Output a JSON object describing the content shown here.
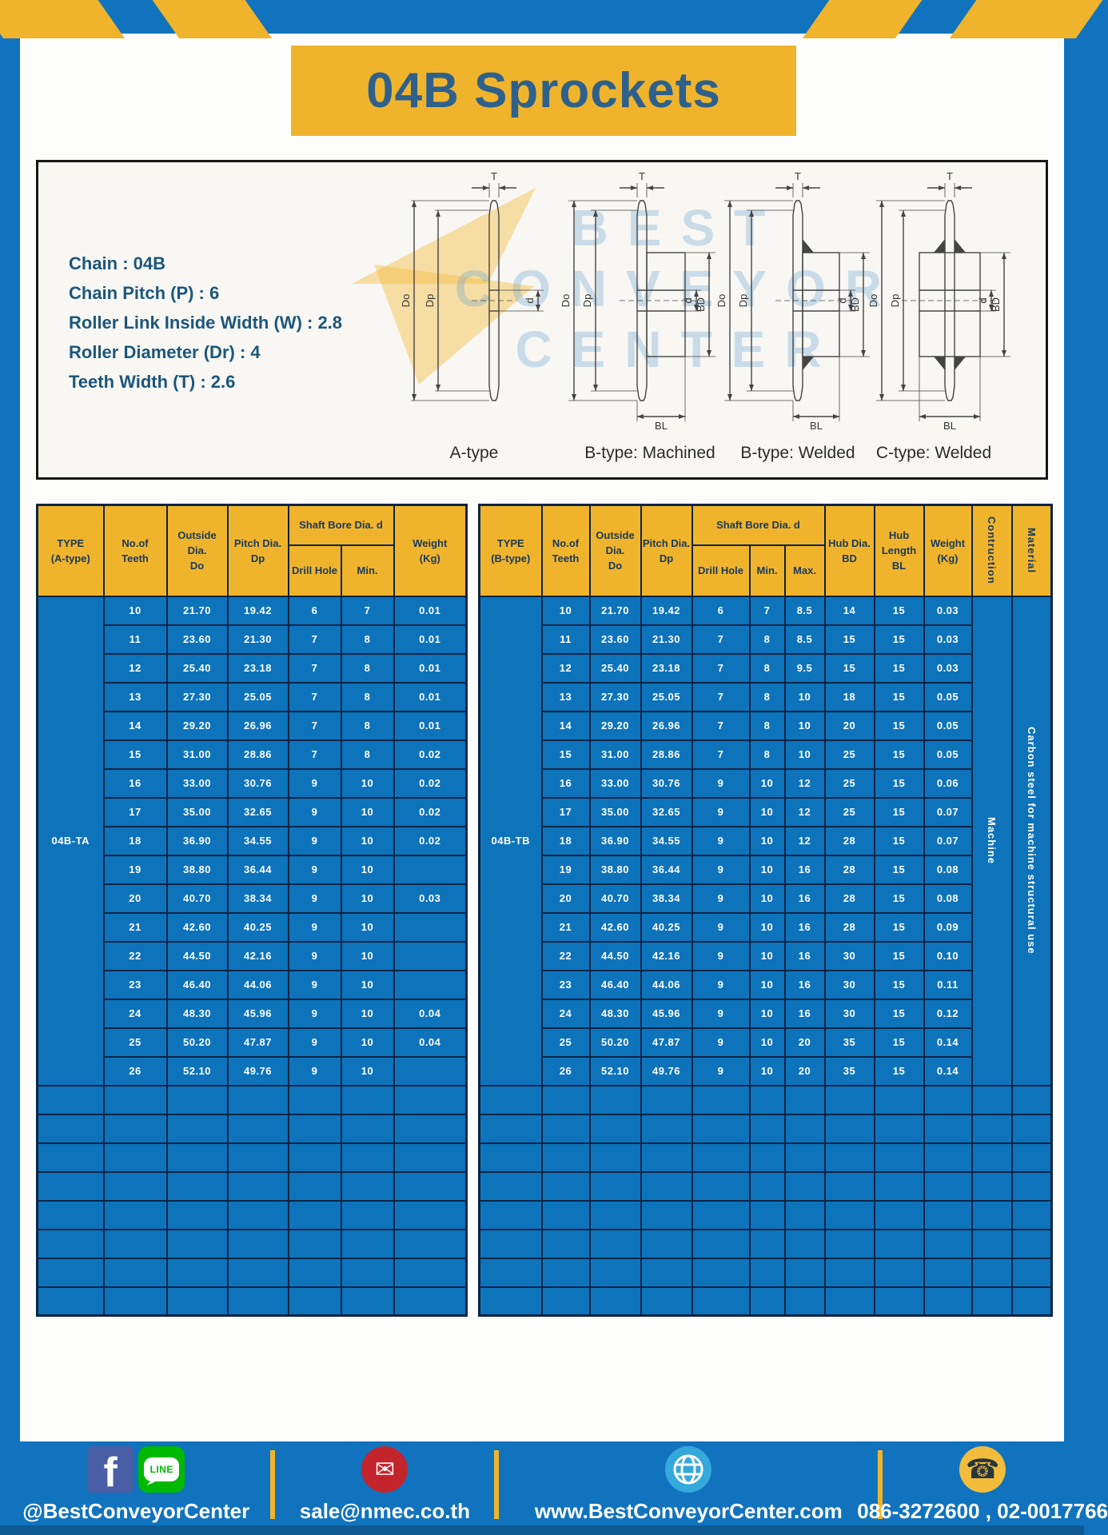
{
  "page_title": "04B Sprockets",
  "colors": {
    "frame_blue": "#1173bd",
    "accent_yellow": "#f0b42c",
    "cell_blue": "#0d73bb",
    "grid_navy": "#0b2444",
    "header_text": "#17395c",
    "title_text": "#2e608c",
    "spec_text": "#1d567c"
  },
  "diagram": {
    "specs": [
      {
        "label": "Chain",
        "value": "04B"
      },
      {
        "label": "Chain Pitch (P)",
        "value": "6"
      },
      {
        "label": "Roller Link Inside Width (W)",
        "value": "2.8"
      },
      {
        "label": "Roller Diameter (Dr)",
        "value": "4"
      },
      {
        "label": "Teeth Width (T)",
        "value": "2.6"
      }
    ],
    "variant_labels": [
      "A-type",
      "B-type: Machined",
      "B-type: Welded",
      "C-type: Welded"
    ],
    "dimension_labels": {
      "teeth_width": "T",
      "outside": "Do",
      "pitch": "Dp",
      "bore": "d",
      "hub_dia": "BD",
      "hub_len": "BL"
    },
    "watermark_lines": [
      "BEST",
      "CONVEYOR",
      "CENTER"
    ]
  },
  "table_a": {
    "header": {
      "type": [
        "TYPE",
        "(A-type)"
      ],
      "teeth": [
        "No.of",
        "Teeth"
      ],
      "outside": [
        "Outside",
        "Dia.",
        "Do"
      ],
      "pitch": [
        "Pitch Dia.",
        "Dp"
      ],
      "shaft_bore_group": "Shaft Bore Dia. d",
      "drill": "Drill Hole",
      "min": "Min.",
      "weight": [
        "Weight",
        "(Kg)"
      ]
    },
    "type_value": "04B-TA",
    "rows": [
      [
        "10",
        "21.70",
        "19.42",
        "6",
        "7",
        "0.01"
      ],
      [
        "11",
        "23.60",
        "21.30",
        "7",
        "8",
        "0.01"
      ],
      [
        "12",
        "25.40",
        "23.18",
        "7",
        "8",
        "0.01"
      ],
      [
        "13",
        "27.30",
        "25.05",
        "7",
        "8",
        "0.01"
      ],
      [
        "14",
        "29.20",
        "26.96",
        "7",
        "8",
        "0.01"
      ],
      [
        "15",
        "31.00",
        "28.86",
        "7",
        "8",
        "0.02"
      ],
      [
        "16",
        "33.00",
        "30.76",
        "9",
        "10",
        "0.02"
      ],
      [
        "17",
        "35.00",
        "32.65",
        "9",
        "10",
        "0.02"
      ],
      [
        "18",
        "36.90",
        "34.55",
        "9",
        "10",
        "0.02"
      ],
      [
        "19",
        "38.80",
        "36.44",
        "9",
        "10",
        ""
      ],
      [
        "20",
        "40.70",
        "38.34",
        "9",
        "10",
        "0.03"
      ],
      [
        "21",
        "42.60",
        "40.25",
        "9",
        "10",
        ""
      ],
      [
        "22",
        "44.50",
        "42.16",
        "9",
        "10",
        ""
      ],
      [
        "23",
        "46.40",
        "44.06",
        "9",
        "10",
        ""
      ],
      [
        "24",
        "48.30",
        "45.96",
        "9",
        "10",
        "0.04"
      ],
      [
        "25",
        "50.20",
        "47.87",
        "9",
        "10",
        "0.04"
      ],
      [
        "26",
        "52.10",
        "49.76",
        "9",
        "10",
        ""
      ]
    ],
    "empty_rows": 8
  },
  "table_b": {
    "header": {
      "type": [
        "TYPE",
        "(B-type)"
      ],
      "teeth": [
        "No.of",
        "Teeth"
      ],
      "outside": [
        "Outside",
        "Dia.",
        "Do"
      ],
      "pitch": [
        "Pitch Dia.",
        "Dp"
      ],
      "shaft_bore_group": "Shaft Bore Dia. d",
      "drill": "Drill Hole",
      "min": "Min.",
      "max": "Max.",
      "hub_dia": [
        "Hub Dia.",
        "BD"
      ],
      "hub_len": [
        "Hub",
        "Length",
        "BL"
      ],
      "weight": [
        "Weight",
        "(Kg)"
      ],
      "construction": "Contruction",
      "material": "Material"
    },
    "type_value": "04B-TB",
    "construction_value": "Machine",
    "material_value": "Carbon steel for machine structural use",
    "rows": [
      [
        "10",
        "21.70",
        "19.42",
        "6",
        "7",
        "8.5",
        "14",
        "15",
        "0.03"
      ],
      [
        "11",
        "23.60",
        "21.30",
        "7",
        "8",
        "8.5",
        "15",
        "15",
        "0.03"
      ],
      [
        "12",
        "25.40",
        "23.18",
        "7",
        "8",
        "9.5",
        "15",
        "15",
        "0.03"
      ],
      [
        "13",
        "27.30",
        "25.05",
        "7",
        "8",
        "10",
        "18",
        "15",
        "0.05"
      ],
      [
        "14",
        "29.20",
        "26.96",
        "7",
        "8",
        "10",
        "20",
        "15",
        "0.05"
      ],
      [
        "15",
        "31.00",
        "28.86",
        "7",
        "8",
        "10",
        "25",
        "15",
        "0.05"
      ],
      [
        "16",
        "33.00",
        "30.76",
        "9",
        "10",
        "12",
        "25",
        "15",
        "0.06"
      ],
      [
        "17",
        "35.00",
        "32.65",
        "9",
        "10",
        "12",
        "25",
        "15",
        "0.07"
      ],
      [
        "18",
        "36.90",
        "34.55",
        "9",
        "10",
        "12",
        "28",
        "15",
        "0.07"
      ],
      [
        "19",
        "38.80",
        "36.44",
        "9",
        "10",
        "16",
        "28",
        "15",
        "0.08"
      ],
      [
        "20",
        "40.70",
        "38.34",
        "9",
        "10",
        "16",
        "28",
        "15",
        "0.08"
      ],
      [
        "21",
        "42.60",
        "40.25",
        "9",
        "10",
        "16",
        "28",
        "15",
        "0.09"
      ],
      [
        "22",
        "44.50",
        "42.16",
        "9",
        "10",
        "16",
        "30",
        "15",
        "0.10"
      ],
      [
        "23",
        "46.40",
        "44.06",
        "9",
        "10",
        "16",
        "30",
        "15",
        "0.11"
      ],
      [
        "24",
        "48.30",
        "45.96",
        "9",
        "10",
        "16",
        "30",
        "15",
        "0.12"
      ],
      [
        "25",
        "50.20",
        "47.87",
        "9",
        "10",
        "20",
        "35",
        "15",
        "0.14"
      ],
      [
        "26",
        "52.10",
        "49.76",
        "9",
        "10",
        "20",
        "35",
        "15",
        "0.14"
      ]
    ],
    "empty_rows": 8
  },
  "footer": {
    "items": [
      {
        "icons": [
          "facebook-icon",
          "line-icon"
        ],
        "text": "@BestConveyorCenter"
      },
      {
        "icons": [
          "mail-icon"
        ],
        "text": "sale@nmec.co.th"
      },
      {
        "icons": [
          "globe-icon"
        ],
        "text": "www.BestConveyorCenter.com"
      },
      {
        "icons": [
          "phone-icon"
        ],
        "text": "086-3272600 , 02-0017766"
      }
    ],
    "line_badge": "LINE",
    "facebook_letter": "f"
  }
}
